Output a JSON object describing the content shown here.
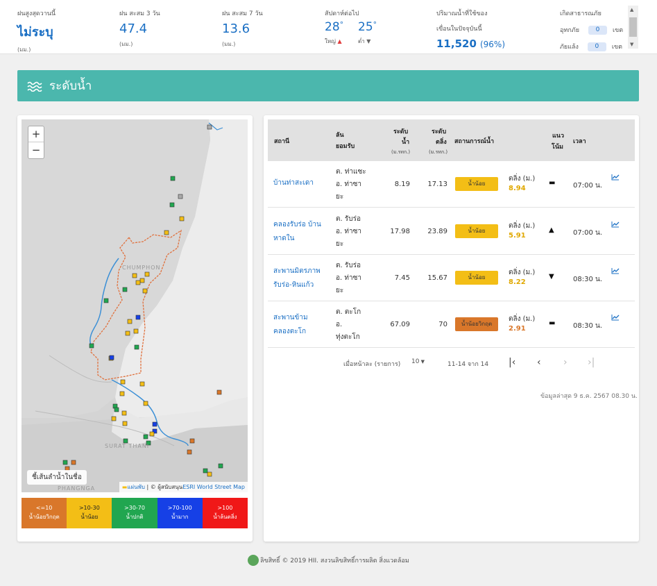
{
  "topbar": {
    "rain_today": {
      "label": "ฝนสูงสุดวานนี้",
      "value": "ไม่ระบุ",
      "unit": "(มม.)"
    },
    "rain_3d": {
      "label": "ฝน สะสม 3 วัน",
      "value": "47.4",
      "unit": "(มม.)"
    },
    "rain_7d": {
      "label": "ฝน สะสม 7 วัน",
      "value": "13.6",
      "unit": "(มม.)"
    },
    "temp": {
      "label": "สัปดาห์ต่อไป",
      "high": "28",
      "high_label": "ใหญ่",
      "low": "25",
      "low_label": "ต่ำ",
      "deg": "°"
    },
    "dam": {
      "label1": "ปริมาณน้ำที่ใช้ของ",
      "label2": "เขื่อนในปัจจุบันนี้",
      "value": "11,520",
      "pct": "(96%)"
    },
    "warn": {
      "title": "เกิดสาธารณภัย",
      "flood_label": "อุทกภัย",
      "flood_val": "0",
      "drought_label": "ภัยแล้ง",
      "drought_val": "0",
      "unit": "เขต"
    }
  },
  "banner": {
    "title": "ระดับน้ำ",
    "icon": "wave-icon"
  },
  "map": {
    "zoom_in": "+",
    "zoom_out": "−",
    "river_button": "ชี้เส้นลำน้ำในชื่อ",
    "attrib_flag": "แผ่นพับ",
    "attrib_mid": " | © ผู้สนับสนุน",
    "attrib_esri": "ESRI World Street Map",
    "place_chumphon": "CHUMPHON",
    "place_surat": "SURAT THANI",
    "place_phangnga": "PHANGNGA",
    "legend": [
      {
        "range": "<=10",
        "label": "น้ำน้อยวิกฤต",
        "color": "#d9772a"
      },
      {
        "range": ">10-30",
        "label": "น้ำน้อย",
        "color": "#f3be16"
      },
      {
        "range": ">30-70",
        "label": "น้ำปกติ",
        "color": "#21a650"
      },
      {
        "range": ">70-100",
        "label": "น้ำมาก",
        "color": "#1640e6"
      },
      {
        "range": ">100",
        "label": "น้ำล้นตลิ่ง",
        "color": "#f01818"
      }
    ]
  },
  "table": {
    "headers": {
      "station": "สถานี",
      "basin1": "ลัน",
      "basin2": "ยอมรับ",
      "wl1": "ระดับ",
      "wl2": "น้ำ",
      "wl_unit": "(ม.รทก.)",
      "bank1": "ระดับ",
      "bank2": "ตลิ่ง",
      "bank_unit": "(ม.รทก.)",
      "situation": "สถานการณ์น้ำ",
      "trend1": "แนว",
      "trend2": "โน้ม",
      "time": "เวลา"
    },
    "rows": [
      {
        "station1": "บ้านท่าสะเดา",
        "station2": "",
        "b1": "ต. ท่าแซะ",
        "b2": "อ. ท่าซา",
        "b3": "ยะ",
        "wl": "8.19",
        "bank": "17.13",
        "status": "น้ำน้อย",
        "status_color": "#f3be16",
        "tl": "ตลิ่ง (ม.)",
        "tv": "8.94",
        "tv_color": "#e0a800",
        "trend": "▬",
        "time": "07:00 น.",
        "graph": "chart-icon"
      },
      {
        "station1": "คลองรับร่อ บ้าน",
        "station2": "หาดใน",
        "b1": "ต. รับร่อ",
        "b2": "อ. ท่าซา",
        "b3": "ยะ",
        "wl": "17.98",
        "bank": "23.89",
        "status": "น้ำน้อย",
        "status_color": "#f3be16",
        "tl": "ตลิ่ง (ม.)",
        "tv": "5.91",
        "tv_color": "#e0a800",
        "trend": "▲",
        "time": "07:00 น.",
        "graph": "chart-icon"
      },
      {
        "station1": "สะพานมิตรภาพ",
        "station2": "รับร่อ-หินแก้ว",
        "b1": "ต. รับร่อ",
        "b2": "อ. ท่าซา",
        "b3": "ยะ",
        "wl": "7.45",
        "bank": "15.67",
        "status": "น้ำน้อย",
        "status_color": "#f3be16",
        "tl": "ตลิ่ง (ม.)",
        "tv": "8.22",
        "tv_color": "#e0a800",
        "trend": "▼",
        "time": "08:30 น.",
        "graph": "chart-icon"
      },
      {
        "station1": "สะพานข้าม",
        "station2": "คลองตะโก",
        "b1": "ต. ตะโก",
        "b2": "อ.",
        "b3": "ทุ่งตะโก",
        "wl": "67.09",
        "bank": "70",
        "status": "น้ำน้อยวิกฤต",
        "status_color": "#d9772a",
        "tl": "ตลิ่ง (ม.)",
        "tv": "2.91",
        "tv_color": "#d9772a",
        "trend": "▬",
        "time": "08:30 น.",
        "graph": "chart-icon"
      }
    ],
    "pager": {
      "per_page_label": "เมื่อหน้าละ (รายการ)",
      "per_page": "10",
      "range": "11-14 จาก 14",
      "first": "|‹",
      "prev": "‹",
      "next": "›",
      "last": "›|"
    },
    "updated": "ข้อมูลล่าสุด 9 ธ.ค. 2567 08.30 น."
  },
  "footer": {
    "text": "ลิขสิทธิ์ © 2019 HII. สงวนลิขสิทธิ์การผลิต สิ่งแวดล้อม"
  }
}
